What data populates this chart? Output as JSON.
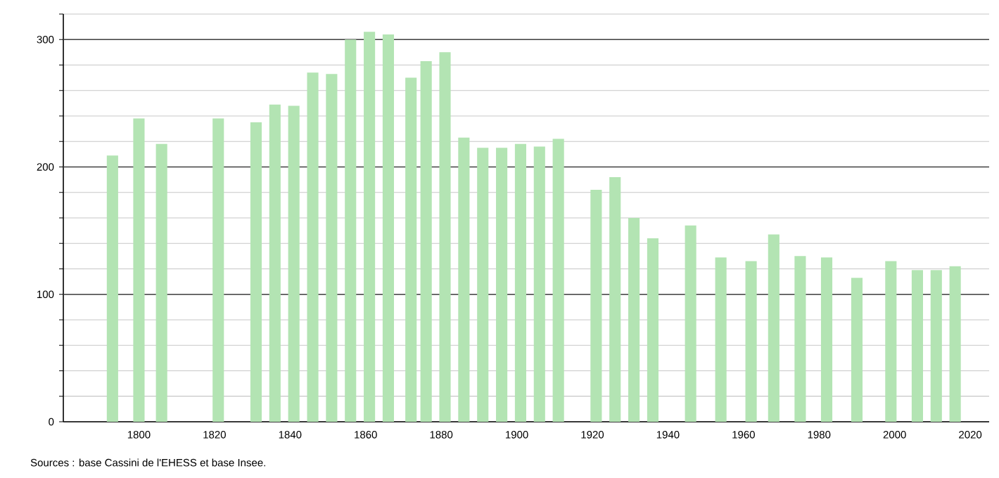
{
  "chart_data": {
    "type": "bar",
    "x": [
      1793,
      1800,
      1806,
      1821,
      1831,
      1836,
      1841,
      1846,
      1851,
      1856,
      1861,
      1866,
      1872,
      1876,
      1881,
      1886,
      1891,
      1896,
      1901,
      1906,
      1911,
      1921,
      1926,
      1931,
      1936,
      1946,
      1954,
      1962,
      1968,
      1975,
      1982,
      1990,
      1999,
      2006,
      2011,
      2016
    ],
    "values": [
      209,
      238,
      218,
      238,
      235,
      249,
      248,
      274,
      273,
      300,
      306,
      304,
      270,
      283,
      290,
      223,
      215,
      215,
      218,
      216,
      222,
      182,
      192,
      160,
      144,
      154,
      129,
      126,
      147,
      130,
      129,
      113,
      126,
      119,
      119,
      122
    ],
    "color": "#b3e4b3",
    "xlim": [
      1780,
      2025
    ],
    "xticks": [
      1800,
      1820,
      1840,
      1860,
      1880,
      1900,
      1920,
      1940,
      1960,
      1980,
      2000,
      2020
    ],
    "ylim": [
      0,
      320
    ],
    "yticks": [
      0,
      {
        "value": 20,
        "label": null
      },
      {
        "value": 40,
        "label": null
      },
      {
        "value": 60,
        "label": null
      },
      {
        "value": 80,
        "label": null
      },
      100,
      {
        "value": 120,
        "label": null
      },
      {
        "value": 140,
        "label": null
      },
      {
        "value": 160,
        "label": null
      },
      {
        "value": 180,
        "label": null
      },
      200,
      {
        "value": 220,
        "label": null
      },
      {
        "value": 240,
        "label": null
      },
      {
        "value": 260,
        "label": null
      },
      {
        "value": 280,
        "label": null
      },
      300,
      {
        "value": 320,
        "label": null
      }
    ],
    "grid": "y",
    "annotations": [
      "Sources : base Cassini de l'EHESS et base Insee."
    ]
  }
}
